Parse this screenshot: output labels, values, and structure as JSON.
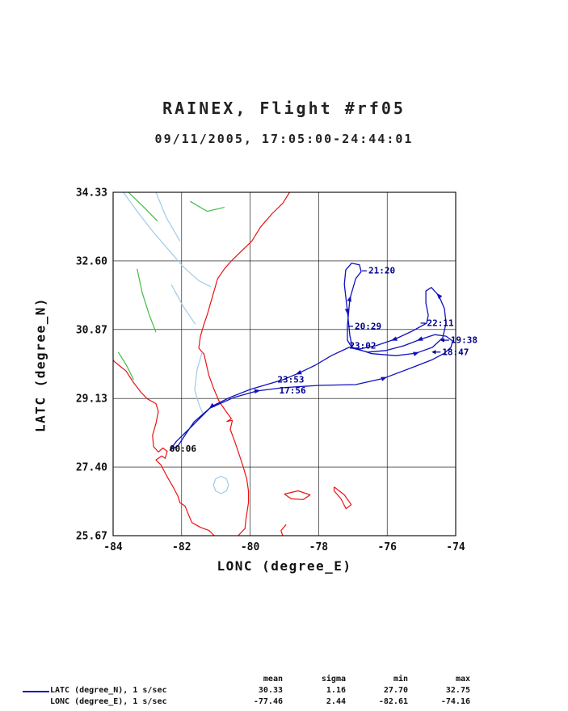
{
  "chart_data": {
    "type": "line",
    "title": "RAINEX, Flight #rf05",
    "subtitle": "09/11/2005, 17:05:00-24:44:01",
    "xlabel": "LONC (degree_E)",
    "ylabel": "LATC (degree_N)",
    "xlim": [
      -84,
      -74
    ],
    "ylim": [
      25.67,
      34.33
    ],
    "xticks": [
      "-84",
      "-82",
      "-80",
      "-78",
      "-76",
      "-74"
    ],
    "yticks": [
      "25.67",
      "27.40",
      "29.13",
      "30.87",
      "32.60",
      "34.33"
    ],
    "grid": true,
    "legend_position": "bottom-left",
    "colors": {
      "track": "#1010c0",
      "coast": "#ee1111",
      "river": "#a0cbe8",
      "border": "#44bb44",
      "annotation": "#00008b",
      "grid": "#000000"
    },
    "series": [
      {
        "name": "flight-track",
        "points": [
          [
            -82.35,
            27.82
          ],
          [
            -82.15,
            28.05
          ],
          [
            -81.76,
            28.38
          ],
          [
            -81.17,
            28.89
          ],
          [
            -80.46,
            29.16
          ],
          [
            -79.8,
            29.32
          ],
          [
            -79.05,
            29.4
          ],
          [
            -77.99,
            29.46
          ],
          [
            -76.92,
            29.48
          ],
          [
            -76.1,
            29.64
          ],
          [
            -75.27,
            29.91
          ],
          [
            -74.68,
            30.11
          ],
          [
            -74.33,
            30.27
          ],
          [
            -74.14,
            30.42
          ],
          [
            -74.09,
            30.58
          ],
          [
            -74.28,
            30.7
          ],
          [
            -74.61,
            30.74
          ],
          [
            -75.04,
            30.62
          ],
          [
            -75.51,
            30.46
          ],
          [
            -76.03,
            30.34
          ],
          [
            -76.57,
            30.3
          ],
          [
            -77.02,
            30.4
          ],
          [
            -77.16,
            30.6
          ],
          [
            -77.16,
            30.97
          ],
          [
            -77.09,
            31.64
          ],
          [
            -76.92,
            32.15
          ],
          [
            -76.76,
            32.33
          ],
          [
            -76.81,
            32.5
          ],
          [
            -77.04,
            32.54
          ],
          [
            -77.21,
            32.37
          ],
          [
            -77.25,
            32.01
          ],
          [
            -77.16,
            31.33
          ],
          [
            -77.09,
            30.72
          ],
          [
            -77.02,
            30.42
          ],
          [
            -76.45,
            30.26
          ],
          [
            -75.75,
            30.21
          ],
          [
            -75.16,
            30.27
          ],
          [
            -74.68,
            30.42
          ],
          [
            -74.38,
            30.66
          ],
          [
            -74.28,
            31.03
          ],
          [
            -74.33,
            31.4
          ],
          [
            -74.49,
            31.72
          ],
          [
            -74.71,
            31.93
          ],
          [
            -74.87,
            31.84
          ],
          [
            -74.87,
            31.54
          ],
          [
            -74.8,
            31.23
          ],
          [
            -74.85,
            31.03
          ],
          [
            -75.27,
            30.83
          ],
          [
            -75.79,
            30.62
          ],
          [
            -76.33,
            30.46
          ],
          [
            -76.8,
            30.38
          ],
          [
            -77.11,
            30.42
          ],
          [
            -77.63,
            30.21
          ],
          [
            -78.1,
            29.97
          ],
          [
            -78.58,
            29.77
          ],
          [
            -79.05,
            29.6
          ],
          [
            -79.52,
            29.48
          ],
          [
            -79.99,
            29.36
          ],
          [
            -80.58,
            29.16
          ],
          [
            -81.12,
            28.93
          ],
          [
            -81.64,
            28.54
          ],
          [
            -81.92,
            28.18
          ],
          [
            -82.11,
            27.93
          ],
          [
            -82.3,
            27.85
          ]
        ]
      }
    ],
    "arrow_indices": [
      5,
      9,
      17,
      24,
      31,
      36,
      41,
      48,
      54,
      59
    ],
    "annotations": [
      {
        "text": "21:20",
        "lon": -76.76,
        "lat": 32.35,
        "marker": "dash"
      },
      {
        "text": "20:29",
        "lon": -77.16,
        "lat": 30.95,
        "marker": "dash"
      },
      {
        "text": "22:11",
        "lon": -75.05,
        "lat": 31.03,
        "marker": "dash"
      },
      {
        "text": "19:38",
        "lon": -74.45,
        "lat": 30.6,
        "marker": "arrow"
      },
      {
        "text": "18:47",
        "lon": -74.7,
        "lat": 30.3,
        "marker": "arrow"
      },
      {
        "text": "23:02",
        "lon": -77.15,
        "lat": 30.46,
        "marker": "none"
      },
      {
        "text": "23:53",
        "lon": -79.25,
        "lat": 29.6,
        "marker": "none"
      },
      {
        "text": "17:56",
        "lon": -79.2,
        "lat": 29.33,
        "marker": "none"
      },
      {
        "text": "00:06",
        "lon": -82.4,
        "lat": 27.86,
        "marker": "none",
        "bold": true
      }
    ],
    "geo": [
      {
        "name": "coast-carolinas-georgia",
        "color": "coast",
        "points": [
          [
            -78.85,
            34.33
          ],
          [
            -79.05,
            34.05
          ],
          [
            -79.35,
            33.8
          ],
          [
            -79.7,
            33.45
          ],
          [
            -79.95,
            33.1
          ],
          [
            -80.25,
            32.85
          ],
          [
            -80.55,
            32.6
          ],
          [
            -80.75,
            32.4
          ],
          [
            -80.95,
            32.15
          ],
          [
            -81.05,
            31.85
          ],
          [
            -81.15,
            31.55
          ],
          [
            -81.25,
            31.25
          ],
          [
            -81.35,
            31.0
          ],
          [
            -81.45,
            30.7
          ],
          [
            -81.5,
            30.4
          ],
          [
            -81.35,
            30.25
          ],
          [
            -81.28,
            30.0
          ],
          [
            -81.2,
            29.7
          ],
          [
            -81.05,
            29.35
          ],
          [
            -80.9,
            29.05
          ],
          [
            -80.7,
            28.8
          ],
          [
            -80.55,
            28.62
          ],
          [
            -80.68,
            28.55
          ],
          [
            -80.52,
            28.58
          ],
          [
            -80.58,
            28.35
          ],
          [
            -80.45,
            28.05
          ],
          [
            -80.32,
            27.72
          ],
          [
            -80.2,
            27.4
          ],
          [
            -80.1,
            27.1
          ],
          [
            -80.05,
            26.8
          ],
          [
            -80.05,
            26.5
          ],
          [
            -80.12,
            26.1
          ],
          [
            -80.15,
            25.85
          ],
          [
            -80.35,
            25.67
          ]
        ]
      },
      {
        "name": "coast-florida-gulf",
        "color": "coast",
        "points": [
          [
            -81.05,
            25.67
          ],
          [
            -81.2,
            25.8
          ],
          [
            -81.45,
            25.88
          ],
          [
            -81.7,
            26.0
          ],
          [
            -81.8,
            26.2
          ],
          [
            -81.9,
            26.42
          ],
          [
            -82.05,
            26.5
          ],
          [
            -82.1,
            26.65
          ],
          [
            -82.25,
            26.9
          ],
          [
            -82.45,
            27.2
          ],
          [
            -82.6,
            27.45
          ],
          [
            -82.75,
            27.58
          ],
          [
            -82.58,
            27.68
          ],
          [
            -82.48,
            27.62
          ],
          [
            -82.42,
            27.8
          ],
          [
            -82.55,
            27.88
          ],
          [
            -82.68,
            27.78
          ],
          [
            -82.82,
            27.92
          ],
          [
            -82.85,
            28.2
          ],
          [
            -82.75,
            28.5
          ],
          [
            -82.68,
            28.8
          ],
          [
            -82.75,
            29.0
          ],
          [
            -83.0,
            29.12
          ],
          [
            -83.2,
            29.3
          ],
          [
            -83.42,
            29.55
          ],
          [
            -83.62,
            29.82
          ],
          [
            -83.95,
            30.05
          ],
          [
            -84.0,
            30.1
          ]
        ]
      },
      {
        "name": "island-grand-bahama",
        "color": "coast",
        "points": [
          [
            -79.0,
            26.72
          ],
          [
            -78.6,
            26.8
          ],
          [
            -78.25,
            26.7
          ],
          [
            -78.45,
            26.58
          ],
          [
            -78.8,
            26.6
          ],
          [
            -79.0,
            26.72
          ]
        ]
      },
      {
        "name": "island-abaco",
        "color": "coast",
        "points": [
          [
            -77.55,
            26.9
          ],
          [
            -77.25,
            26.7
          ],
          [
            -77.05,
            26.45
          ],
          [
            -77.2,
            26.35
          ],
          [
            -77.35,
            26.6
          ],
          [
            -77.55,
            26.8
          ],
          [
            -77.55,
            26.9
          ]
        ]
      },
      {
        "name": "island-bimini",
        "color": "coast",
        "points": [
          [
            -78.95,
            25.95
          ],
          [
            -79.1,
            25.8
          ],
          [
            -79.05,
            25.67
          ]
        ]
      },
      {
        "name": "lake-okeechobee",
        "color": "river",
        "points": [
          [
            -80.63,
            26.95
          ],
          [
            -80.69,
            27.1
          ],
          [
            -80.85,
            27.17
          ],
          [
            -81.01,
            27.1
          ],
          [
            -81.07,
            26.95
          ],
          [
            -81.01,
            26.8
          ],
          [
            -80.85,
            26.73
          ],
          [
            -80.69,
            26.8
          ],
          [
            -80.63,
            26.95
          ]
        ]
      },
      {
        "name": "river-savannah",
        "color": "river",
        "points": [
          [
            -83.7,
            34.33
          ],
          [
            -83.3,
            33.85
          ],
          [
            -82.85,
            33.35
          ],
          [
            -82.4,
            32.9
          ],
          [
            -81.95,
            32.45
          ],
          [
            -81.5,
            32.1
          ],
          [
            -81.15,
            31.95
          ]
        ]
      },
      {
        "name": "river-upper",
        "color": "river",
        "points": [
          [
            -82.75,
            34.33
          ],
          [
            -82.45,
            33.7
          ],
          [
            -82.05,
            33.1
          ]
        ]
      },
      {
        "name": "river-altamaha",
        "color": "river",
        "points": [
          [
            -82.3,
            32.0
          ],
          [
            -81.95,
            31.45
          ],
          [
            -81.6,
            31.0
          ]
        ]
      },
      {
        "name": "river-st-johns",
        "color": "river",
        "points": [
          [
            -81.4,
            30.3
          ],
          [
            -81.55,
            29.85
          ],
          [
            -81.62,
            29.35
          ],
          [
            -81.48,
            28.95
          ],
          [
            -81.38,
            28.75
          ]
        ]
      },
      {
        "name": "border-west",
        "color": "border",
        "points": [
          [
            -83.55,
            34.33
          ],
          [
            -83.1,
            33.95
          ],
          [
            -82.7,
            33.6
          ]
        ]
      },
      {
        "name": "border-east",
        "color": "border",
        "points": [
          [
            -81.75,
            34.1
          ],
          [
            -81.25,
            33.85
          ],
          [
            -80.75,
            33.95
          ]
        ]
      },
      {
        "name": "border-bigbend",
        "color": "border",
        "points": [
          [
            -83.85,
            30.3
          ],
          [
            -83.6,
            29.95
          ],
          [
            -83.4,
            29.6
          ]
        ]
      },
      {
        "name": "border-georgia",
        "color": "border",
        "points": [
          [
            -83.3,
            32.4
          ],
          [
            -83.15,
            31.8
          ],
          [
            -82.95,
            31.25
          ],
          [
            -82.75,
            30.8
          ]
        ]
      }
    ]
  },
  "stats": {
    "headers": [
      "mean",
      "sigma",
      "min",
      "max"
    ],
    "rows": [
      {
        "label": "LATC (degree_N), 1 s/sec",
        "mean": "30.33",
        "sigma": "1.16",
        "min": "27.70",
        "max": "32.75"
      },
      {
        "label": "LONC (degree_E), 1 s/sec",
        "mean": "-77.46",
        "sigma": "2.44",
        "min": "-82.61",
        "max": "-74.16"
      }
    ]
  }
}
